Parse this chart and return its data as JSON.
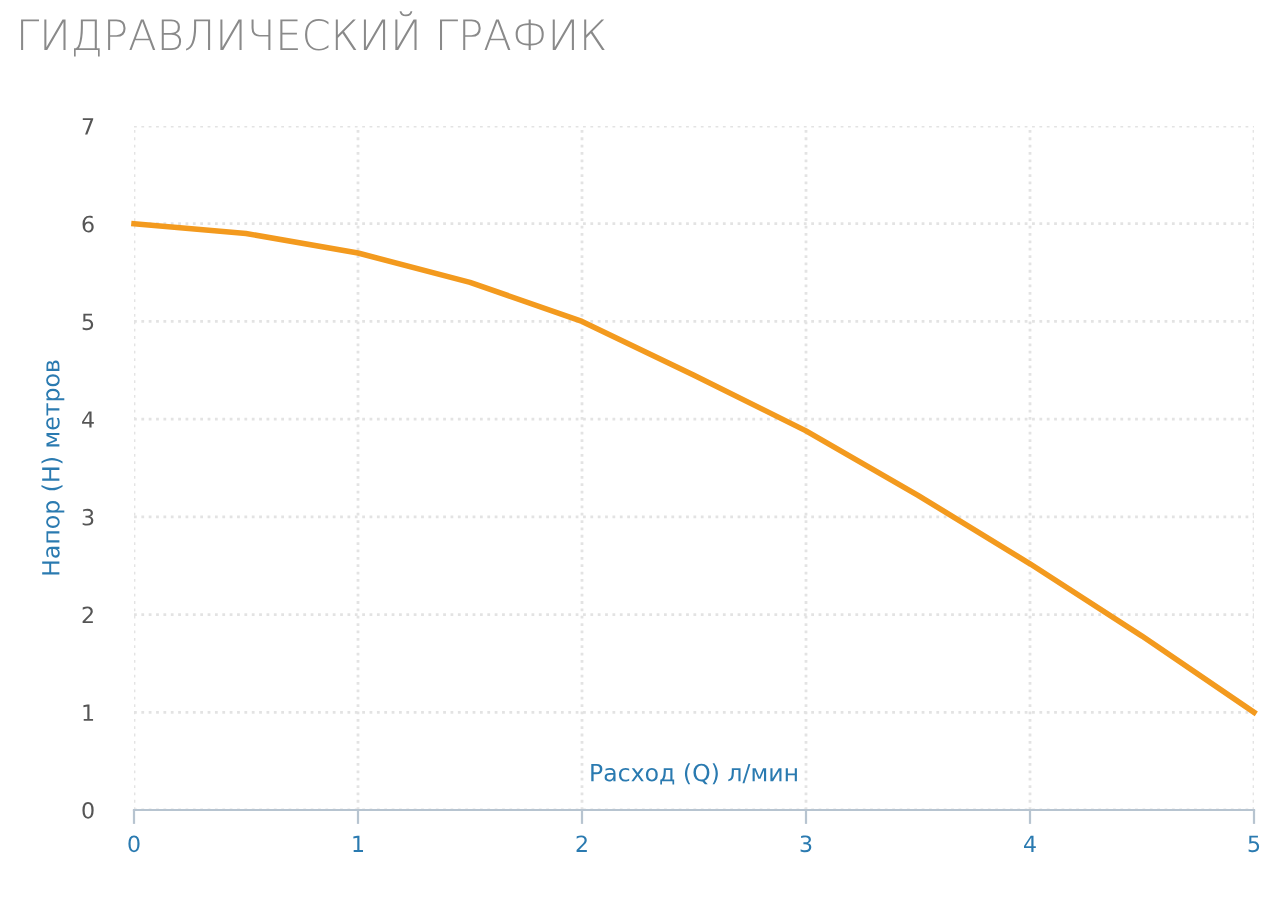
{
  "chart_data": {
    "type": "line",
    "title": "ГИДРАВЛИЧЕСКИЙ ГРАФИК",
    "xlabel": "Расход (Q) л/мин",
    "ylabel": "Напор (H) метров",
    "x": [
      0,
      0.5,
      1,
      1.5,
      2,
      2.5,
      3,
      3.5,
      4,
      4.5,
      5
    ],
    "series": [
      {
        "color": "#f39a1e",
        "values": [
          6.0,
          5.9,
          5.7,
          5.4,
          5.0,
          4.45,
          3.88,
          3.22,
          2.52,
          1.78,
          1.0
        ]
      }
    ],
    "xlim": [
      0,
      5
    ],
    "ylim": [
      0,
      7
    ],
    "xticks": [
      0,
      1,
      2,
      3,
      4,
      5
    ],
    "yticks": [
      0,
      1,
      2,
      3,
      4,
      5,
      6,
      7
    ],
    "grid": true,
    "marker": "none",
    "line_style": "solid"
  }
}
